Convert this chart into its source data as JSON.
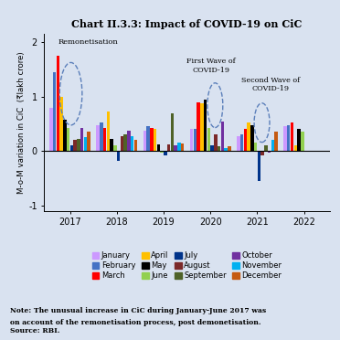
{
  "title": "Chart II.3.3: Impact of COVID-19 on CiC",
  "ylabel": "M-o-M variation in CiC  (₹lakh crore)",
  "background_color": "#d9e2f0",
  "ylim": [
    -1.1,
    2.15
  ],
  "yticks": [
    -1,
    0,
    1,
    2
  ],
  "note_bold": "Note:",
  "note_text": " The unusual increase in CiC during January-June 2017 was\non account of the remonetisation process, post demonetisation.\nSource: RBI.",
  "months": [
    "January",
    "February",
    "March",
    "April",
    "May",
    "June",
    "July",
    "August",
    "September",
    "October",
    "November",
    "December"
  ],
  "month_colors": [
    "#cc99ff",
    "#4472c4",
    "#ff0000",
    "#ffc000",
    "#000000",
    "#92d050",
    "#00338a",
    "#7b2929",
    "#4f6228",
    "#7030a0",
    "#00b0f0",
    "#c55a11"
  ],
  "years": [
    2017,
    2018,
    2019,
    2020,
    2021,
    2022
  ],
  "data": {
    "2017": [
      0.8,
      1.45,
      1.75,
      1.0,
      0.57,
      0.42,
      0.1,
      0.2,
      0.22,
      0.43,
      0.25,
      0.35
    ],
    "2018": [
      0.47,
      0.52,
      0.43,
      0.72,
      0.22,
      0.1,
      -0.18,
      0.28,
      0.3,
      0.38,
      0.28,
      0.2
    ],
    "2019": [
      0.38,
      0.45,
      0.42,
      0.4,
      0.12,
      -0.03,
      -0.08,
      0.12,
      0.7,
      0.1,
      0.15,
      0.13
    ],
    "2020": [
      0.4,
      0.4,
      0.9,
      0.87,
      0.95,
      0.43,
      0.1,
      0.3,
      0.08,
      0.54,
      0.05,
      0.08
    ],
    "2021": [
      0.28,
      0.3,
      0.4,
      0.52,
      0.47,
      0.15,
      -0.55,
      -0.08,
      0.1,
      -0.03,
      0.2,
      0.35
    ],
    "2022": [
      0.45,
      0.48,
      0.53,
      0.1,
      0.4,
      0.35,
      null,
      null,
      null,
      null,
      null,
      null
    ]
  }
}
